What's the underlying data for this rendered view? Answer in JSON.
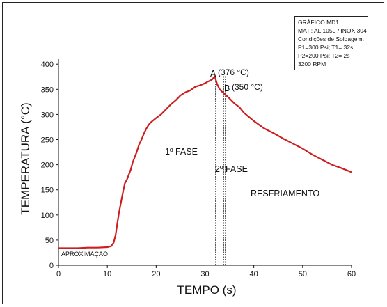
{
  "chart_data": {
    "type": "line",
    "xlabel": "TEMPO (s)",
    "ylabel": "TEMPERATURA (°C)",
    "xlim": [
      0,
      60
    ],
    "ylim": [
      0,
      410
    ],
    "x_ticks": [
      0,
      10,
      20,
      30,
      40,
      50,
      60
    ],
    "y_ticks": [
      0,
      50,
      100,
      150,
      200,
      250,
      300,
      350,
      400
    ],
    "grid": false,
    "line_color": "#cc1f1f",
    "series": [
      {
        "x": [
          0,
          2,
          4,
          6,
          8,
          10,
          10.8,
          11.3,
          11.7,
          12,
          12.4,
          12.8,
          13.2,
          13.6,
          14,
          14.4,
          14.8,
          15.2,
          15.6,
          16,
          16.5,
          17,
          17.5,
          18,
          18.5,
          19,
          20,
          21,
          22,
          23,
          24,
          25,
          26,
          27,
          28,
          29,
          30,
          30.5,
          31,
          31.5,
          32,
          32.5,
          33,
          33.5,
          34,
          35,
          36,
          37,
          38,
          39,
          40,
          42,
          44,
          46,
          48,
          50,
          52,
          54,
          56,
          58,
          60
        ],
        "y": [
          34,
          34,
          34,
          35,
          35,
          36,
          38,
          45,
          60,
          80,
          105,
          125,
          145,
          163,
          170,
          180,
          190,
          205,
          215,
          225,
          240,
          250,
          262,
          272,
          280,
          285,
          293,
          300,
          310,
          320,
          328,
          338,
          344,
          348,
          355,
          358,
          362,
          365,
          367,
          370,
          376,
          360,
          350,
          345,
          341,
          332,
          322,
          315,
          303,
          295,
          287,
          273,
          263,
          252,
          242,
          232,
          220,
          210,
          200,
          193,
          185
        ]
      }
    ],
    "annotations": {
      "point_a": "A",
      "point_a_value": "(376 °C)",
      "point_b": "B",
      "point_b_value": "(350 °C)",
      "phase1": "1º FASE",
      "phase2": "2º FASE",
      "cooling": "RESFRIAMENTO",
      "approach": "APROXIMAÇÃO"
    },
    "markers": {
      "a_time": 32,
      "b_time": 34
    },
    "info_box": [
      "GRÁFICO MD1",
      "MAT.: AL 1050 / INOX 304",
      "Condições de Soldagem:",
      "P1=300 Psi;   T1= 32s",
      "P2=200 Psi;   T2= 2s",
      "3200 RPM"
    ]
  }
}
